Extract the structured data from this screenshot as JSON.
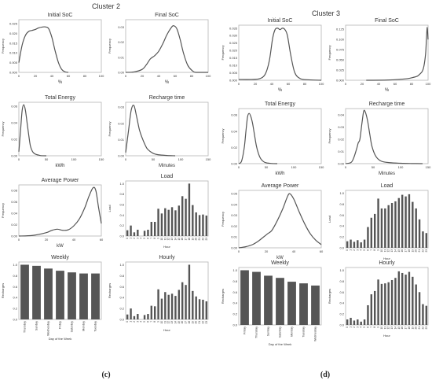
{
  "figure": {
    "left_title": "Cluster 2",
    "right_title": "Cluster 3",
    "left_caption": "(c)",
    "right_caption": "(d)"
  },
  "colors": {
    "line": "#555555",
    "bar": "#555555",
    "frame": "#b5b5b5",
    "text": "#333333"
  },
  "chart_data": [
    {
      "id": "c2-initial-soc",
      "type": "line",
      "title": "Initial SoC",
      "xlabel": "%",
      "ylabel": "Frequency",
      "xlim": [
        0,
        100
      ],
      "ylim": [
        0,
        0.027
      ],
      "xticks": [
        0,
        20,
        40,
        60,
        80,
        100
      ],
      "yticks": [
        0.0,
        0.005,
        0.01,
        0.015,
        0.02,
        0.025
      ],
      "ytick_labels": [
        "0.000",
        "0.005",
        "0.010",
        "0.015",
        "0.020",
        "0.025"
      ],
      "x": [
        0,
        4,
        8,
        12,
        16,
        20,
        24,
        28,
        32,
        36,
        40,
        44,
        48,
        52,
        56,
        60
      ],
      "y": [
        0.005,
        0.014,
        0.019,
        0.021,
        0.0215,
        0.022,
        0.0228,
        0.0232,
        0.0233,
        0.0225,
        0.018,
        0.011,
        0.005,
        0.0015,
        0.0003,
        0.0
      ]
    },
    {
      "id": "c2-final-soc",
      "type": "line",
      "title": "Final SoC",
      "xlabel": "%",
      "ylabel": "Frequency",
      "xlim": [
        0,
        100
      ],
      "ylim": [
        0,
        0.035
      ],
      "xticks": [
        0,
        20,
        40,
        60,
        80,
        100
      ],
      "yticks": [
        0.0,
        0.01,
        0.02,
        0.03
      ],
      "ytick_labels": [
        "0.00",
        "0.01",
        "0.02",
        "0.03"
      ],
      "x": [
        0,
        10,
        20,
        25,
        30,
        35,
        40,
        45,
        50,
        55,
        58,
        62,
        66,
        70,
        75,
        80,
        85,
        100
      ],
      "y": [
        0.0,
        0.0003,
        0.002,
        0.005,
        0.009,
        0.011,
        0.014,
        0.019,
        0.025,
        0.0295,
        0.031,
        0.029,
        0.022,
        0.013,
        0.005,
        0.0015,
        0.0,
        0.0
      ]
    },
    {
      "id": "c2-total-energy",
      "type": "line",
      "title": "Total Energy",
      "xlabel": "kWh",
      "ylabel": "Frequency",
      "xlim": [
        0,
        150
      ],
      "ylim": [
        0,
        0.065
      ],
      "xticks": [
        0,
        50,
        100,
        150
      ],
      "yticks": [
        0.0,
        0.02,
        0.04,
        0.06
      ],
      "ytick_labels": [
        "0.00",
        "0.02",
        "0.04",
        "0.06"
      ],
      "x": [
        0,
        3,
        6,
        9,
        12,
        15,
        18,
        21,
        25,
        30,
        35,
        40,
        50
      ],
      "y": [
        0.005,
        0.03,
        0.055,
        0.062,
        0.055,
        0.04,
        0.025,
        0.012,
        0.005,
        0.002,
        0.001,
        0.0002,
        0.0
      ]
    },
    {
      "id": "c2-recharge-time",
      "type": "line",
      "title": "Recharge time",
      "xlabel": "Minutes",
      "ylabel": "Frequency",
      "xlim": [
        0,
        150
      ],
      "ylim": [
        0,
        0.033
      ],
      "xticks": [
        0,
        50,
        100,
        150
      ],
      "yticks": [
        0.0,
        0.01,
        0.02,
        0.03
      ],
      "ytick_labels": [
        "0.00",
        "0.01",
        "0.02",
        "0.03"
      ],
      "x": [
        0,
        5,
        10,
        15,
        20,
        25,
        30,
        35,
        40,
        50,
        60,
        75,
        90
      ],
      "y": [
        0.002,
        0.015,
        0.028,
        0.031,
        0.024,
        0.016,
        0.011,
        0.007,
        0.004,
        0.0015,
        0.0006,
        0.0002,
        0.0
      ]
    },
    {
      "id": "c2-average-power",
      "type": "line",
      "title": "Average Power",
      "xlabel": "kW",
      "ylabel": "Frequency",
      "xlim": [
        0,
        60
      ],
      "ylim": [
        0,
        0.09
      ],
      "xticks": [
        0,
        20,
        40,
        60
      ],
      "yticks": [
        0.0,
        0.02,
        0.04,
        0.06,
        0.08
      ],
      "ytick_labels": [
        "0.00",
        "0.02",
        "0.04",
        "0.06",
        "0.08"
      ],
      "x": [
        0,
        10,
        20,
        24,
        28,
        32,
        36,
        40,
        44,
        48,
        51,
        54,
        56,
        58,
        60
      ],
      "y": [
        0.0,
        0.001,
        0.006,
        0.01,
        0.012,
        0.01,
        0.011,
        0.018,
        0.03,
        0.05,
        0.07,
        0.085,
        0.08,
        0.05,
        0.022
      ]
    },
    {
      "id": "c2-load",
      "type": "bar",
      "title": "Load",
      "xlabel": "Hour",
      "ylabel": "Load",
      "ylim": [
        0,
        1.05
      ],
      "yticks": [
        0.0,
        0.2,
        0.4,
        0.6,
        0.8,
        1.0
      ],
      "ytick_labels": [
        "0.0",
        "0.2",
        "0.4",
        "0.6",
        "0.8",
        "1.0"
      ],
      "categories": [
        "0",
        "1",
        "2",
        "3",
        "4",
        "5",
        "6",
        "7",
        "8",
        "9",
        "10",
        "11",
        "12",
        "13",
        "14",
        "15",
        "16",
        "17",
        "18",
        "19",
        "20",
        "21",
        "22",
        "23"
      ],
      "values": [
        0.11,
        0.2,
        0.07,
        0.12,
        0.0,
        0.1,
        0.12,
        0.27,
        0.27,
        0.52,
        0.43,
        0.53,
        0.5,
        0.55,
        0.49,
        0.58,
        0.76,
        0.71,
        1.0,
        0.59,
        0.45,
        0.4,
        0.41,
        0.39
      ]
    },
    {
      "id": "c2-weekly",
      "type": "bar",
      "title": "Weekly",
      "xlabel": "Day of the Week",
      "ylabel": "Recharges",
      "ylim": [
        0,
        1.05
      ],
      "yticks": [
        0.0,
        0.2,
        0.4,
        0.6,
        0.8,
        1.0
      ],
      "ytick_labels": [
        "0.0",
        "0.2",
        "0.4",
        "0.6",
        "0.8",
        "1.0"
      ],
      "categories": [
        "Thursday",
        "Sunday",
        "Wednesday",
        "Friday",
        "Saturday",
        "Monday",
        "Tuesday"
      ],
      "values": [
        1.0,
        0.98,
        0.93,
        0.89,
        0.86,
        0.84,
        0.84
      ]
    },
    {
      "id": "c2-hourly",
      "type": "bar",
      "title": "Hourly",
      "xlabel": "Hour",
      "ylabel": "Recharges",
      "ylim": [
        0,
        1.05
      ],
      "yticks": [
        0.0,
        0.2,
        0.4,
        0.6,
        0.8,
        1.0
      ],
      "ytick_labels": [
        "0.0",
        "0.2",
        "0.4",
        "0.6",
        "0.8",
        "1.0"
      ],
      "categories": [
        "0",
        "1",
        "2",
        "3",
        "4",
        "5",
        "6",
        "7",
        "8",
        "9",
        "10",
        "11",
        "12",
        "13",
        "14",
        "15",
        "16",
        "17",
        "18",
        "19",
        "20",
        "21",
        "22",
        "23"
      ],
      "values": [
        0.09,
        0.2,
        0.06,
        0.1,
        0.0,
        0.08,
        0.1,
        0.25,
        0.24,
        0.55,
        0.38,
        0.5,
        0.45,
        0.47,
        0.43,
        0.54,
        0.68,
        0.63,
        1.0,
        0.52,
        0.42,
        0.37,
        0.36,
        0.33
      ]
    },
    {
      "id": "c3-initial-soc",
      "type": "line",
      "title": "Initial SoC",
      "xlabel": "%",
      "ylabel": "Frequency",
      "xlim": [
        0,
        100
      ],
      "ylim": [
        0,
        0.037
      ],
      "xticks": [
        0,
        20,
        40,
        60,
        80,
        100
      ],
      "yticks": [
        0.0,
        0.005,
        0.01,
        0.015,
        0.02,
        0.025,
        0.03,
        0.035
      ],
      "ytick_labels": [
        "0.000",
        "0.005",
        "0.010",
        "0.015",
        "0.020",
        "0.025",
        "0.030",
        "0.035"
      ],
      "x": [
        0,
        15,
        25,
        32,
        37,
        41,
        44,
        47,
        50,
        53,
        56,
        59,
        63,
        68,
        75,
        85,
        100
      ],
      "y": [
        0.0005,
        0.0005,
        0.001,
        0.004,
        0.013,
        0.028,
        0.034,
        0.035,
        0.034,
        0.035,
        0.034,
        0.03,
        0.017,
        0.005,
        0.001,
        0.0003,
        0.0
      ]
    },
    {
      "id": "c3-final-soc",
      "type": "line",
      "title": "Final SoC",
      "xlabel": "%",
      "ylabel": "Frequency",
      "xlim": [
        0,
        100
      ],
      "ylim": [
        0,
        0.135
      ],
      "xticks": [
        0,
        20,
        40,
        60,
        80,
        100
      ],
      "yticks": [
        0.0,
        0.025,
        0.05,
        0.075,
        0.1,
        0.125
      ],
      "ytick_labels": [
        "0.000",
        "0.025",
        "0.050",
        "0.075",
        "0.100",
        "0.125"
      ],
      "x": [
        25,
        50,
        65,
        75,
        82,
        87,
        90,
        93,
        95,
        97,
        98,
        99,
        100
      ],
      "y": [
        0.0,
        0.0005,
        0.002,
        0.004,
        0.007,
        0.01,
        0.015,
        0.022,
        0.035,
        0.065,
        0.1,
        0.13,
        0.1
      ]
    },
    {
      "id": "c3-total-energy",
      "type": "line",
      "title": "Total Energy",
      "xlabel": "kWh",
      "ylabel": "Frequency",
      "xlim": [
        0,
        150
      ],
      "ylim": [
        0,
        0.068
      ],
      "xticks": [
        0,
        50,
        100,
        150
      ],
      "yticks": [
        0.0,
        0.02,
        0.04,
        0.06
      ],
      "ytick_labels": [
        "0.00",
        "0.02",
        "0.04",
        "0.06"
      ],
      "x": [
        0,
        5,
        10,
        13,
        16,
        19,
        22,
        25,
        28,
        32,
        36,
        40,
        45,
        50,
        60,
        70
      ],
      "y": [
        0.0,
        0.003,
        0.02,
        0.04,
        0.058,
        0.062,
        0.058,
        0.05,
        0.038,
        0.022,
        0.012,
        0.006,
        0.0025,
        0.001,
        0.0002,
        0.0
      ]
    },
    {
      "id": "c3-recharge-time",
      "type": "line",
      "title": "Recharge time",
      "xlabel": "Minutes",
      "ylabel": "Frequency",
      "xlim": [
        0,
        150
      ],
      "ylim": [
        0,
        0.045
      ],
      "xticks": [
        0,
        50,
        100,
        150
      ],
      "yticks": [
        0.0,
        0.01,
        0.02,
        0.03,
        0.04
      ],
      "ytick_labels": [
        "0.00",
        "0.01",
        "0.02",
        "0.03",
        "0.04"
      ],
      "x": [
        0,
        10,
        15,
        20,
        23,
        26,
        30,
        33,
        36,
        40,
        44,
        48,
        55,
        65,
        80,
        100,
        120,
        140
      ],
      "y": [
        0.0,
        0.001,
        0.005,
        0.012,
        0.017,
        0.02,
        0.034,
        0.043,
        0.042,
        0.035,
        0.024,
        0.014,
        0.006,
        0.002,
        0.0008,
        0.0003,
        0.0001,
        0.0
      ]
    },
    {
      "id": "c3-average-power",
      "type": "line",
      "title": "Average Power",
      "xlabel": "kW",
      "ylabel": "Frequency",
      "xlim": [
        0,
        60
      ],
      "ylim": [
        0,
        0.053
      ],
      "xticks": [
        0,
        20,
        40,
        60
      ],
      "yticks": [
        0.0,
        0.01,
        0.02,
        0.03,
        0.04,
        0.05
      ],
      "ytick_labels": [
        "0.00",
        "0.01",
        "0.02",
        "0.03",
        "0.04",
        "0.05"
      ],
      "x": [
        0,
        5,
        10,
        14,
        18,
        21,
        24,
        28,
        32,
        35,
        37,
        40,
        44,
        48,
        52,
        56,
        60
      ],
      "y": [
        0.0,
        0.001,
        0.003,
        0.006,
        0.01,
        0.013,
        0.016,
        0.025,
        0.036,
        0.046,
        0.05,
        0.045,
        0.033,
        0.022,
        0.013,
        0.007,
        0.003
      ]
    },
    {
      "id": "c3-load",
      "type": "bar",
      "title": "Load",
      "xlabel": "Hour",
      "ylabel": "Load",
      "ylim": [
        0,
        1.05
      ],
      "yticks": [
        0.0,
        0.2,
        0.4,
        0.6,
        0.8,
        1.0
      ],
      "ytick_labels": [
        "0.0",
        "0.2",
        "0.4",
        "0.6",
        "0.8",
        "1.0"
      ],
      "categories": [
        "0",
        "1",
        "2",
        "3",
        "4",
        "5",
        "6",
        "7",
        "8",
        "9",
        "10",
        "11",
        "12",
        "13",
        "14",
        "15",
        "16",
        "17",
        "18",
        "19",
        "20",
        "21",
        "22",
        "23"
      ],
      "values": [
        0.12,
        0.15,
        0.11,
        0.14,
        0.1,
        0.15,
        0.38,
        0.55,
        0.62,
        0.9,
        0.72,
        0.72,
        0.78,
        0.82,
        0.85,
        0.91,
        0.97,
        0.94,
        0.98,
        0.84,
        0.72,
        0.52,
        0.3,
        0.27
      ]
    },
    {
      "id": "c3-weekly",
      "type": "bar",
      "title": "Weekly",
      "xlabel": "Day of the Week",
      "ylabel": "Recharges",
      "ylim": [
        0,
        1.05
      ],
      "yticks": [
        0.0,
        0.2,
        0.4,
        0.6,
        0.8,
        1.0
      ],
      "ytick_labels": [
        "0.0",
        "0.2",
        "0.4",
        "0.6",
        "0.8",
        "1.0"
      ],
      "categories": [
        "Friday",
        "Thursday",
        "Sunday",
        "Saturday",
        "Monday",
        "Tuesday",
        "Wednesday"
      ],
      "values": [
        1.0,
        0.97,
        0.9,
        0.86,
        0.79,
        0.76,
        0.72
      ]
    },
    {
      "id": "c3-hourly",
      "type": "bar",
      "title": "Hourly",
      "xlabel": "Hour",
      "ylabel": "Recharges",
      "ylim": [
        0,
        1.05
      ],
      "yticks": [
        0.0,
        0.2,
        0.4,
        0.6,
        0.8,
        1.0
      ],
      "ytick_labels": [
        "0.0",
        "0.2",
        "0.4",
        "0.6",
        "0.8",
        "1.0"
      ],
      "categories": [
        "0",
        "1",
        "2",
        "3",
        "4",
        "5",
        "6",
        "7",
        "8",
        "9",
        "10",
        "11",
        "12",
        "13",
        "14",
        "15",
        "16",
        "17",
        "18",
        "19",
        "20",
        "21",
        "22",
        "23"
      ],
      "values": [
        0.1,
        0.13,
        0.08,
        0.1,
        0.06,
        0.1,
        0.36,
        0.56,
        0.62,
        0.83,
        0.75,
        0.76,
        0.78,
        0.82,
        0.86,
        0.98,
        0.95,
        0.92,
        0.97,
        0.88,
        0.74,
        0.6,
        0.38,
        0.35
      ]
    }
  ]
}
